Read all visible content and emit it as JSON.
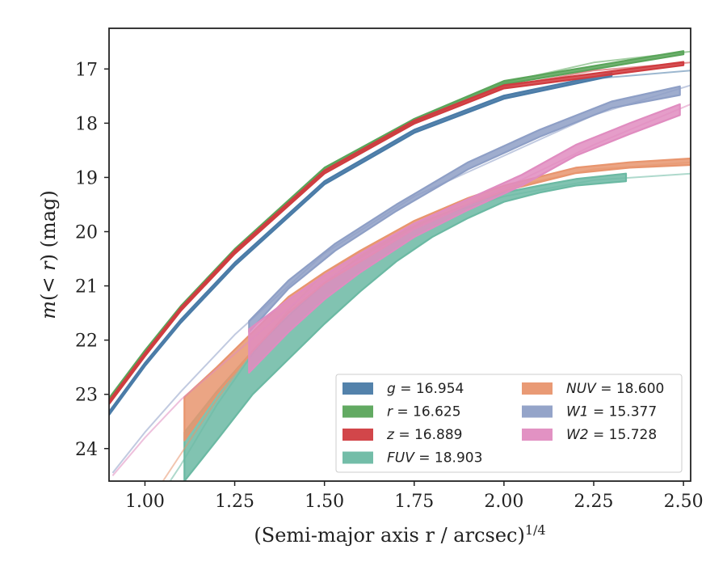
{
  "chart_data": {
    "type": "line",
    "title": "",
    "xlabel": "(Semi-major axis r / arcsec)^1/4",
    "ylabel": "m(< r) (mag)",
    "xlim": [
      0.9,
      2.52
    ],
    "ylim": [
      24.6,
      16.25
    ],
    "y_inverted": true,
    "xticks": [
      "1.00",
      "1.25",
      "1.50",
      "1.75",
      "2.00",
      "2.25",
      "2.50"
    ],
    "xtick_values": [
      1.0,
      1.25,
      1.5,
      1.75,
      2.0,
      2.25,
      2.5
    ],
    "yticks": [
      "17",
      "18",
      "19",
      "20",
      "21",
      "22",
      "23",
      "24"
    ],
    "ytick_values": [
      17,
      18,
      19,
      20,
      21,
      22,
      23,
      24
    ],
    "legend_position": "lower-right",
    "legend": [
      {
        "prefix": "g",
        "value": "16.954",
        "color": "#4a7ba7"
      },
      {
        "prefix": "r",
        "value": "16.625",
        "color": "#5aa55a"
      },
      {
        "prefix": "z",
        "value": "16.889",
        "color": "#d03c40"
      },
      {
        "prefix": "FUV",
        "value": "18.903",
        "color": "#6bb9a3"
      },
      {
        "prefix": "NUV",
        "value": "18.600",
        "color": "#e8956e"
      },
      {
        "prefix": "W1",
        "value": "15.377",
        "color": "#8e9fc6"
      },
      {
        "prefix": "W2",
        "value": "15.728",
        "color": "#e08cc0"
      }
    ],
    "series": [
      {
        "name": "g",
        "color": "#4a7ba7",
        "model": [
          [
            0.9,
            23.35
          ],
          [
            1.0,
            22.45
          ],
          [
            1.1,
            21.65
          ],
          [
            1.25,
            20.6
          ],
          [
            1.5,
            19.1
          ],
          [
            1.75,
            18.15
          ],
          [
            2.0,
            17.52
          ],
          [
            2.25,
            17.18
          ],
          [
            2.52,
            17.03
          ]
        ],
        "band": [
          [
            0.9,
            23.32,
            23.38
          ],
          [
            1.0,
            22.42,
            22.48
          ],
          [
            1.1,
            21.62,
            21.68
          ],
          [
            1.25,
            20.57,
            20.63
          ],
          [
            1.5,
            19.07,
            19.13
          ],
          [
            1.75,
            18.12,
            18.18
          ],
          [
            2.0,
            17.49,
            17.55
          ],
          [
            2.3,
            17.08,
            17.13
          ]
        ]
      },
      {
        "name": "r",
        "color": "#5aa55a",
        "model": [
          [
            0.9,
            23.1
          ],
          [
            1.0,
            22.22
          ],
          [
            1.1,
            21.4
          ],
          [
            1.25,
            20.35
          ],
          [
            1.5,
            18.85
          ],
          [
            1.75,
            17.95
          ],
          [
            2.0,
            17.25
          ],
          [
            2.25,
            16.88
          ],
          [
            2.52,
            16.68
          ]
        ],
        "band": [
          [
            0.9,
            23.07,
            23.13
          ],
          [
            1.0,
            22.19,
            22.25
          ],
          [
            1.1,
            21.37,
            21.43
          ],
          [
            1.25,
            20.32,
            20.38
          ],
          [
            1.5,
            18.82,
            18.88
          ],
          [
            1.75,
            17.92,
            17.98
          ],
          [
            2.0,
            17.22,
            17.28
          ],
          [
            2.5,
            16.67,
            16.73
          ]
        ]
      },
      {
        "name": "z",
        "color": "#d03c40",
        "model": [
          [
            0.9,
            23.15
          ],
          [
            1.0,
            22.27
          ],
          [
            1.1,
            21.43
          ],
          [
            1.25,
            20.38
          ],
          [
            1.5,
            18.9
          ],
          [
            1.75,
            17.98
          ],
          [
            2.0,
            17.33
          ],
          [
            2.25,
            17.03
          ],
          [
            2.52,
            16.88
          ]
        ],
        "band": [
          [
            0.9,
            23.12,
            23.18
          ],
          [
            1.0,
            22.24,
            22.3
          ],
          [
            1.1,
            21.4,
            21.46
          ],
          [
            1.25,
            20.35,
            20.41
          ],
          [
            1.5,
            18.87,
            18.93
          ],
          [
            1.75,
            17.95,
            18.01
          ],
          [
            2.0,
            17.3,
            17.36
          ],
          [
            2.5,
            16.87,
            16.93
          ]
        ]
      },
      {
        "name": "FUV",
        "color": "#6bb9a3",
        "model": [
          [
            1.07,
            24.6
          ],
          [
            1.1,
            24.3
          ],
          [
            1.2,
            23.2
          ],
          [
            1.3,
            22.25
          ],
          [
            1.4,
            21.45
          ],
          [
            1.5,
            20.75
          ],
          [
            1.75,
            19.85
          ],
          [
            2.0,
            19.35
          ],
          [
            2.25,
            19.05
          ],
          [
            2.52,
            18.93
          ]
        ],
        "band": [
          [
            1.11,
            24.6,
            23.7
          ],
          [
            1.2,
            23.85,
            22.95
          ],
          [
            1.3,
            23.0,
            22.2
          ],
          [
            1.4,
            22.35,
            21.55
          ],
          [
            1.5,
            21.7,
            20.95
          ],
          [
            1.6,
            21.1,
            20.45
          ],
          [
            1.7,
            20.55,
            20.05
          ],
          [
            1.8,
            20.1,
            19.75
          ],
          [
            1.9,
            19.75,
            19.5
          ],
          [
            2.0,
            19.45,
            19.28
          ],
          [
            2.1,
            19.28,
            19.15
          ],
          [
            2.2,
            19.15,
            19.03
          ],
          [
            2.34,
            19.07,
            18.93
          ]
        ]
      },
      {
        "name": "NUV",
        "color": "#e8956e",
        "model": [
          [
            1.05,
            24.6
          ],
          [
            1.1,
            24.1
          ],
          [
            1.2,
            23.1
          ],
          [
            1.3,
            22.2
          ],
          [
            1.4,
            21.5
          ],
          [
            1.5,
            20.95
          ],
          [
            1.75,
            19.95
          ],
          [
            2.0,
            19.2
          ],
          [
            2.25,
            18.85
          ],
          [
            2.52,
            18.72
          ]
        ],
        "band": [
          [
            1.11,
            23.85,
            23.05
          ],
          [
            1.2,
            23.0,
            22.5
          ],
          [
            1.3,
            22.2,
            21.85
          ],
          [
            1.4,
            21.5,
            21.2
          ],
          [
            1.5,
            20.95,
            20.75
          ],
          [
            1.6,
            20.55,
            20.35
          ],
          [
            1.75,
            19.95,
            19.8
          ],
          [
            1.9,
            19.5,
            19.38
          ],
          [
            2.0,
            19.25,
            19.15
          ],
          [
            2.2,
            18.92,
            18.82
          ],
          [
            2.35,
            18.82,
            18.72
          ],
          [
            2.52,
            18.77,
            18.65
          ]
        ]
      },
      {
        "name": "W1",
        "color": "#8e9fc6",
        "model": [
          [
            0.91,
            24.45
          ],
          [
            1.0,
            23.7
          ],
          [
            1.1,
            22.95
          ],
          [
            1.25,
            21.9
          ],
          [
            1.4,
            21.0
          ],
          [
            1.5,
            20.4
          ],
          [
            1.75,
            19.35
          ],
          [
            2.0,
            18.6
          ],
          [
            2.25,
            17.85
          ],
          [
            2.52,
            17.3
          ]
        ],
        "band": [
          [
            1.29,
            21.85,
            21.65
          ],
          [
            1.4,
            21.05,
            20.9
          ],
          [
            1.53,
            20.35,
            20.22
          ],
          [
            1.7,
            19.62,
            19.5
          ],
          [
            1.9,
            18.85,
            18.72
          ],
          [
            2.1,
            18.25,
            18.12
          ],
          [
            2.3,
            17.72,
            17.6
          ],
          [
            2.49,
            17.48,
            17.32
          ]
        ]
      },
      {
        "name": "W2",
        "color": "#e08cc0",
        "model": [
          [
            0.91,
            24.5
          ],
          [
            1.0,
            23.8
          ],
          [
            1.1,
            23.1
          ],
          [
            1.25,
            22.25
          ],
          [
            1.4,
            21.4
          ],
          [
            1.5,
            20.9
          ],
          [
            1.75,
            19.95
          ],
          [
            2.0,
            19.2
          ],
          [
            2.25,
            18.4
          ],
          [
            2.52,
            17.65
          ]
        ],
        "band": [
          [
            1.29,
            22.6,
            21.8
          ],
          [
            1.4,
            21.85,
            21.25
          ],
          [
            1.5,
            21.25,
            20.8
          ],
          [
            1.6,
            20.75,
            20.4
          ],
          [
            1.75,
            20.1,
            19.85
          ],
          [
            1.9,
            19.6,
            19.4
          ],
          [
            2.05,
            19.15,
            18.95
          ],
          [
            2.2,
            18.6,
            18.4
          ],
          [
            2.35,
            18.2,
            18.0
          ],
          [
            2.49,
            17.85,
            17.65
          ]
        ]
      }
    ]
  }
}
